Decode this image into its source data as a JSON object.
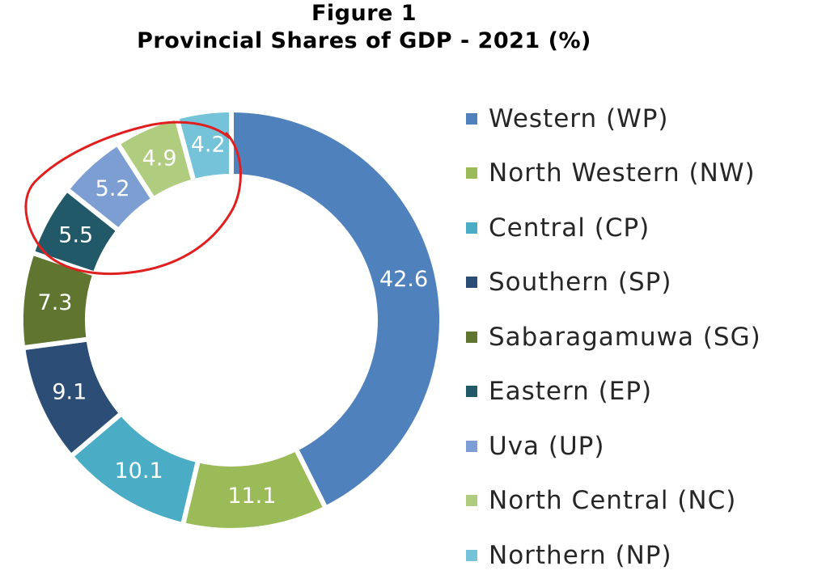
{
  "chart_data": {
    "type": "donut",
    "title": "Figure 1",
    "subtitle": "Provincial Shares of GDP - 2021 (%)",
    "categories": [
      "Western (WP)",
      "North Western (NW)",
      "Central (CP)",
      "Southern (SP)",
      "Sabaragamuwa (SG)",
      "Eastern (EP)",
      "Uva (UP)",
      "North Central (NC)",
      "Northern (NP)"
    ],
    "values": [
      42.6,
      11.1,
      10.1,
      9.1,
      7.3,
      5.5,
      5.2,
      4.9,
      4.2
    ],
    "colors": [
      "#4f81bd",
      "#9bbb59",
      "#4bacc6",
      "#2c4d75",
      "#5f7530",
      "#215968",
      "#7d9ed2",
      "#b0cc7e",
      "#74c3d8"
    ],
    "annotation": {
      "type": "hand-drawn circle",
      "color": "#e02020",
      "highlights": [
        "Eastern (EP)",
        "Uva (UP)",
        "North Central (NC)",
        "Northern (NP)"
      ]
    },
    "legend_position": "right"
  }
}
